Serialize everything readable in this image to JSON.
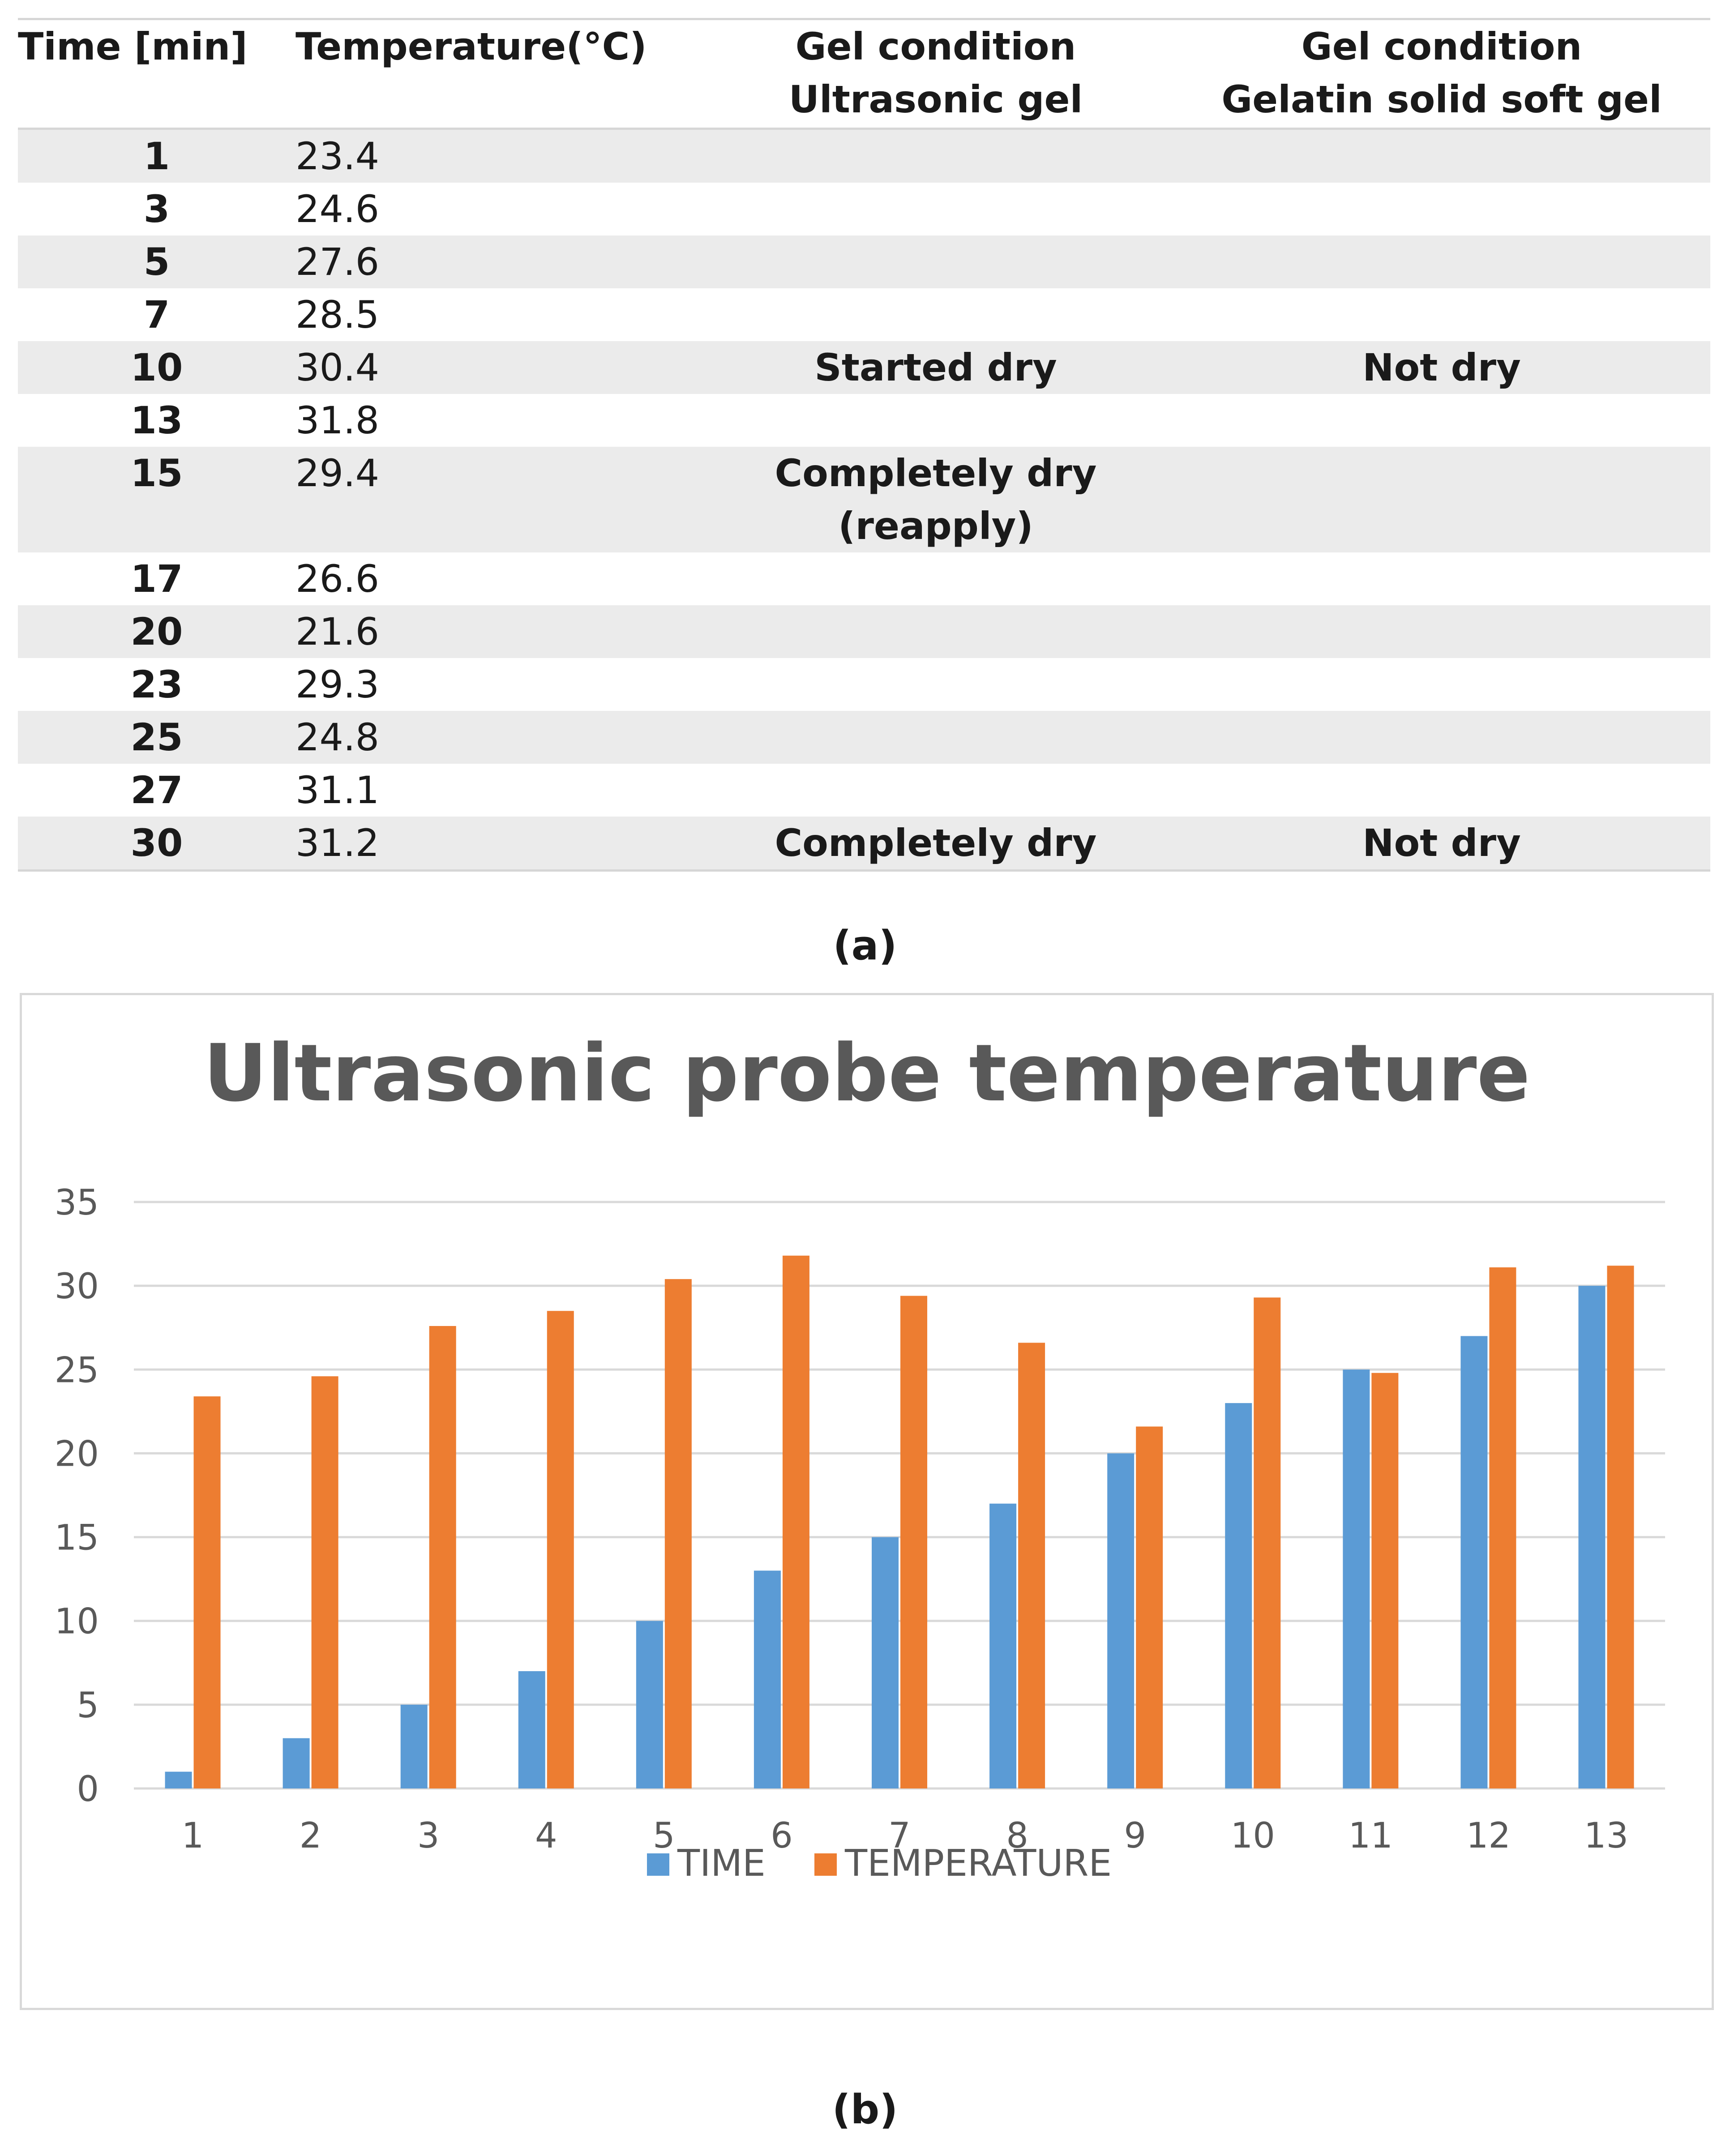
{
  "table": {
    "headers": {
      "time": "Time [min]",
      "temperature": "Temperature(°C)",
      "ultrasonic_line1": "Gel condition",
      "ultrasonic_line2": "Ultrasonic gel",
      "gelatin_line1": "Gel condition",
      "gelatin_line2": "Gelatin solid soft gel"
    },
    "rows": [
      {
        "time": "1",
        "temp": "23.4",
        "ultrasonic": "",
        "ultrasonic2": "",
        "gelatin": ""
      },
      {
        "time": "3",
        "temp": "24.6",
        "ultrasonic": "",
        "ultrasonic2": "",
        "gelatin": ""
      },
      {
        "time": "5",
        "temp": "27.6",
        "ultrasonic": "",
        "ultrasonic2": "",
        "gelatin": ""
      },
      {
        "time": "7",
        "temp": "28.5",
        "ultrasonic": "",
        "ultrasonic2": "",
        "gelatin": ""
      },
      {
        "time": "10",
        "temp": "30.4",
        "ultrasonic": "Started dry",
        "ultrasonic2": "",
        "gelatin": "Not dry"
      },
      {
        "time": "13",
        "temp": "31.8",
        "ultrasonic": "",
        "ultrasonic2": "",
        "gelatin": ""
      },
      {
        "time": "15",
        "temp": "29.4",
        "ultrasonic": "Completely dry",
        "ultrasonic2": "(reapply)",
        "gelatin": ""
      },
      {
        "time": "17",
        "temp": "26.6",
        "ultrasonic": "",
        "ultrasonic2": "",
        "gelatin": ""
      },
      {
        "time": "20",
        "temp": "21.6",
        "ultrasonic": "",
        "ultrasonic2": "",
        "gelatin": ""
      },
      {
        "time": "23",
        "temp": "29.3",
        "ultrasonic": "",
        "ultrasonic2": "",
        "gelatin": ""
      },
      {
        "time": "25",
        "temp": "24.8",
        "ultrasonic": "",
        "ultrasonic2": "",
        "gelatin": ""
      },
      {
        "time": "27",
        "temp": "31.1",
        "ultrasonic": "",
        "ultrasonic2": "",
        "gelatin": ""
      },
      {
        "time": "30",
        "temp": "31.2",
        "ultrasonic": "Completely dry",
        "ultrasonic2": "",
        "gelatin": "Not dry"
      }
    ]
  },
  "captions": {
    "a": "(a)",
    "b": "(b)"
  },
  "colors": {
    "time": "#5b9bd5",
    "temperature": "#ed7d31",
    "grid": "#d9d9d9",
    "text": "#595959"
  },
  "chart_data": {
    "type": "bar",
    "title": "Ultrasonic probe temperature",
    "categories": [
      "1",
      "2",
      "3",
      "4",
      "5",
      "6",
      "7",
      "8",
      "9",
      "10",
      "11",
      "12",
      "13"
    ],
    "series": [
      {
        "name": "TIME",
        "values": [
          1,
          3,
          5,
          7,
          10,
          13,
          15,
          17,
          20,
          23,
          25,
          27,
          30
        ]
      },
      {
        "name": "TEMPERATURE",
        "values": [
          23.4,
          24.6,
          27.6,
          28.5,
          30.4,
          31.8,
          29.4,
          26.6,
          21.6,
          29.3,
          24.8,
          31.1,
          31.2
        ]
      }
    ],
    "yticks": [
      0,
      5,
      10,
      15,
      20,
      25,
      30,
      35
    ],
    "ylim": [
      0,
      35
    ],
    "xlabel": "",
    "ylabel": "",
    "grid": true,
    "legend": "bottom"
  }
}
